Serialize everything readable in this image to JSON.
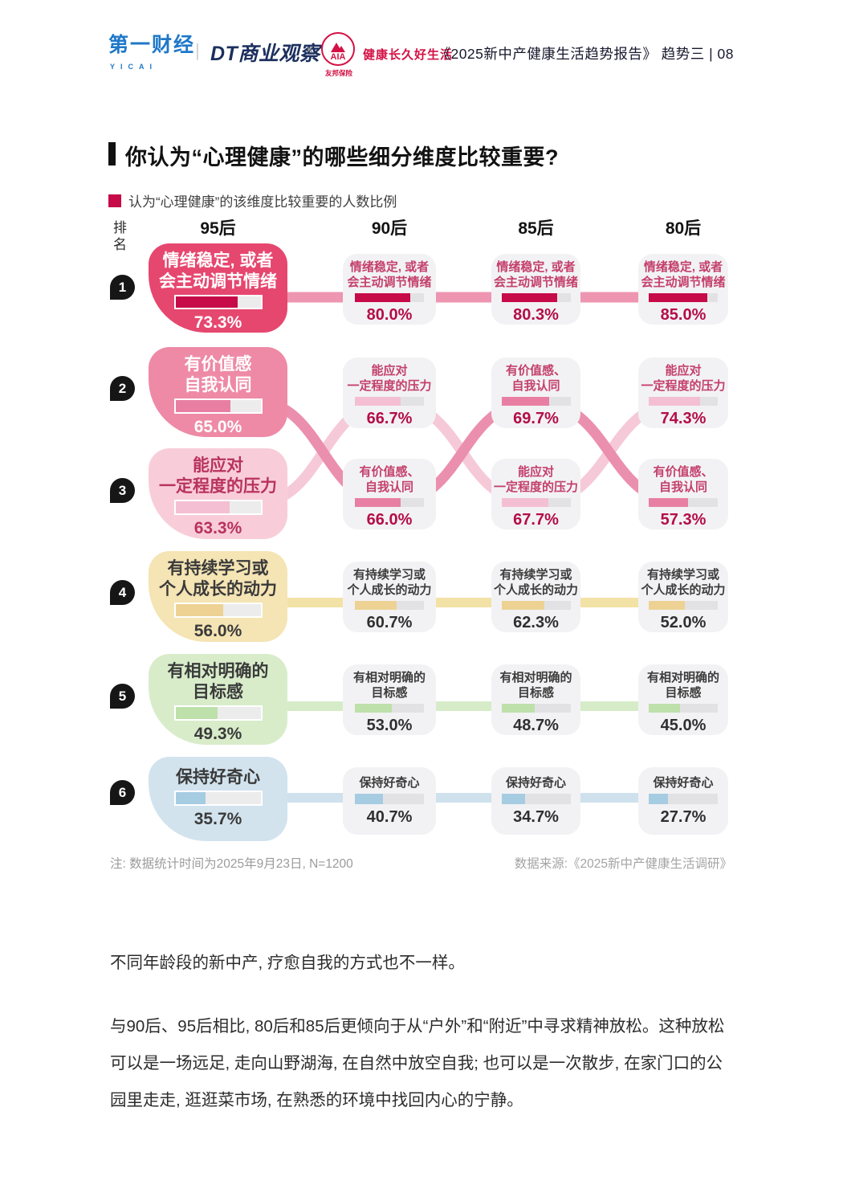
{
  "header": {
    "yicai_logo": "第一财经",
    "yicai_sub": "YICAI",
    "divider": "|",
    "dt_logo": "DT商业观察",
    "cross": "×",
    "aia_name": "AIA",
    "aia_slogan": "健康长久好生活",
    "aia_sub": "友邦保险",
    "report_title": "《2025新中产健康生活趋势报告》 趋势三 | 08"
  },
  "section": {
    "title": "你认为“心理健康”的哪些细分维度比较重要?",
    "legend": "认为“心理健康”的该维度比较重要的人数比例"
  },
  "chart": {
    "rank_label_1": "排",
    "rank_label_2": "名",
    "columns": [
      "95后",
      "90后",
      "85后",
      "80后"
    ],
    "rows": [
      {
        "rank": "1",
        "cells": [
          {
            "lines": [
              "情绪稳定, 或者",
              "会主动调节情绪"
            ],
            "pct": "73.3%",
            "value": 73.3
          },
          {
            "lines": [
              "情绪稳定, 或者",
              "会主动调节情绪"
            ],
            "pct": "80.0%",
            "value": 80.0
          },
          {
            "lines": [
              "情绪稳定, 或者",
              "会主动调节情绪"
            ],
            "pct": "80.3%",
            "value": 80.3
          },
          {
            "lines": [
              "情绪稳定, 或者",
              "会主动调节情绪"
            ],
            "pct": "85.0%",
            "value": 85.0
          }
        ]
      },
      {
        "rank": "2",
        "cells": [
          {
            "lines": [
              "有价值感",
              "自我认同"
            ],
            "pct": "65.0%",
            "value": 65.0
          },
          {
            "lines": [
              "能应对",
              "一定程度的压力"
            ],
            "pct": "66.7%",
            "value": 66.7
          },
          {
            "lines": [
              "有价值感、",
              "自我认同"
            ],
            "pct": "69.7%",
            "value": 69.7
          },
          {
            "lines": [
              "能应对",
              "一定程度的压力"
            ],
            "pct": "74.3%",
            "value": 74.3
          }
        ]
      },
      {
        "rank": "3",
        "cells": [
          {
            "lines": [
              "能应对",
              "一定程度的压力"
            ],
            "pct": "63.3%",
            "value": 63.3
          },
          {
            "lines": [
              "有价值感、",
              "自我认同"
            ],
            "pct": "66.0%",
            "value": 66.0
          },
          {
            "lines": [
              "能应对",
              "一定程度的压力"
            ],
            "pct": "67.7%",
            "value": 67.7
          },
          {
            "lines": [
              "有价值感、",
              "自我认同"
            ],
            "pct": "57.3%",
            "value": 57.3
          }
        ]
      },
      {
        "rank": "4",
        "cells": [
          {
            "lines": [
              "有持续学习或",
              "个人成长的动力"
            ],
            "pct": "56.0%",
            "value": 56.0
          },
          {
            "lines": [
              "有持续学习或",
              "个人成长的动力"
            ],
            "pct": "60.7%",
            "value": 60.7
          },
          {
            "lines": [
              "有持续学习或",
              "个人成长的动力"
            ],
            "pct": "62.3%",
            "value": 62.3
          },
          {
            "lines": [
              "有持续学习或",
              "个人成长的动力"
            ],
            "pct": "52.0%",
            "value": 52.0
          }
        ]
      },
      {
        "rank": "5",
        "cells": [
          {
            "lines": [
              "有相对明确的",
              "目标感"
            ],
            "pct": "49.3%",
            "value": 49.3
          },
          {
            "lines": [
              "有相对明确的",
              "目标感"
            ],
            "pct": "53.0%",
            "value": 53.0
          },
          {
            "lines": [
              "有相对明确的",
              "目标感"
            ],
            "pct": "48.7%",
            "value": 48.7
          },
          {
            "lines": [
              "有相对明确的",
              "目标感"
            ],
            "pct": "45.0%",
            "value": 45.0
          }
        ]
      },
      {
        "rank": "6",
        "cells": [
          {
            "lines": [
              "保持好奇心"
            ],
            "pct": "35.7%",
            "value": 35.7
          },
          {
            "lines": [
              "保持好奇心"
            ],
            "pct": "40.7%",
            "value": 40.7
          },
          {
            "lines": [
              "保持好奇心"
            ],
            "pct": "34.7%",
            "value": 34.7
          },
          {
            "lines": [
              "保持好奇心"
            ],
            "pct": "27.7%",
            "value": 27.7
          }
        ]
      }
    ]
  },
  "chart_data": {
    "type": "table",
    "title": "你认为“心理健康”的哪些细分维度比较重要?",
    "legend": "认为“心理健康”的该维度比较重要的人数比例",
    "unit": "%",
    "columns": [
      "95后",
      "90后",
      "85后",
      "80后"
    ],
    "items": [
      {
        "name": "情绪稳定, 或者会主动调节情绪",
        "values": [
          73.3,
          80.0,
          80.3,
          85.0
        ],
        "ranks": [
          1,
          1,
          1,
          1
        ]
      },
      {
        "name": "有价值感、自我认同",
        "values": [
          65.0,
          66.0,
          69.7,
          57.3
        ],
        "ranks": [
          2,
          3,
          2,
          3
        ]
      },
      {
        "name": "能应对一定程度的压力",
        "values": [
          63.3,
          66.7,
          67.7,
          74.3
        ],
        "ranks": [
          3,
          2,
          3,
          2
        ]
      },
      {
        "name": "有持续学习或个人成长的动力",
        "values": [
          56.0,
          60.7,
          62.3,
          52.0
        ],
        "ranks": [
          4,
          4,
          4,
          4
        ]
      },
      {
        "name": "有相对明确的目标感",
        "values": [
          49.3,
          53.0,
          48.7,
          45.0
        ],
        "ranks": [
          5,
          5,
          5,
          5
        ]
      },
      {
        "name": "保持好奇心",
        "values": [
          35.7,
          40.7,
          34.7,
          27.7
        ],
        "ranks": [
          6,
          6,
          6,
          6
        ]
      }
    ]
  },
  "colors": {
    "accent_crimson": "#c60b48",
    "cards": {
      "r1": "#e6476f",
      "r2": "#ee8aa6",
      "r3": "#f8cdd9",
      "r4": "#f5e4b4",
      "r5": "#d8ecca",
      "r6": "#d2e3ee",
      "sub": "#f2f2f4"
    },
    "fills": {
      "emotion": "#c60b48",
      "value": "#e87fa2",
      "stress": "#f4bfd2",
      "learn": "#edd294",
      "goal": "#bee0ab",
      "curious": "#a6cce2"
    },
    "ribbons": {
      "r1": "#ee95b1",
      "value_curve": "#eb8fae",
      "stress_curve": "#f6c9d8",
      "r4": "#f3e2a6",
      "r5": "#d6ecc8",
      "r6": "#cfe1ed"
    }
  },
  "footer": {
    "note": "注: 数据统计时间为2025年9月23日, N=1200",
    "source": "数据来源:《2025新中产健康生活调研》"
  },
  "body": {
    "p1": "不同年龄段的新中产, 疗愈自我的方式也不一样。",
    "p2": "与90后、95后相比, 80后和85后更倾向于从“户外”和“附近”中寻求精神放松。这种放松可以是一场远足, 走向山野湖海, 在自然中放空自我; 也可以是一次散步, 在家门口的公园里走走, 逛逛菜市场, 在熟悉的环境中找回内心的宁静。"
  }
}
